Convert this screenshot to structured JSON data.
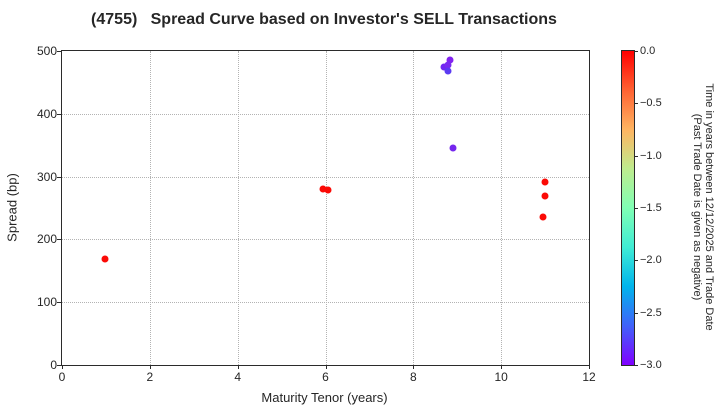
{
  "chart_data": {
    "type": "scatter",
    "title": "(4755)   Spread Curve based on Investor's SELL Transactions",
    "xlabel": "Maturity Tenor (years)",
    "ylabel": "Spread (bp)",
    "xlim": [
      0,
      12
    ],
    "ylim": [
      0,
      500
    ],
    "xticks": [
      0,
      2,
      4,
      6,
      8,
      10,
      12
    ],
    "yticks": [
      0,
      100,
      200,
      300,
      400,
      500
    ],
    "grid": true,
    "legend_position": "none",
    "points": [
      {
        "maturity": 0.97,
        "spread": 169,
        "time_years": 0.0,
        "color": "#fb0a06"
      },
      {
        "maturity": 5.95,
        "spread": 280,
        "time_years": 0.0,
        "color": "#fb0a06"
      },
      {
        "maturity": 6.06,
        "spread": 279,
        "time_years": -0.02,
        "color": "#fb0a06"
      },
      {
        "maturity": 8.7,
        "spread": 474,
        "time_years": -2.85,
        "color": "#7128f2"
      },
      {
        "maturity": 8.84,
        "spread": 486,
        "time_years": -2.95,
        "color": "#8222f0"
      },
      {
        "maturity": 8.78,
        "spread": 478,
        "time_years": -2.9,
        "color": "#7a2af0"
      },
      {
        "maturity": 8.8,
        "spread": 468,
        "time_years": -2.75,
        "color": "#5b3bf2"
      },
      {
        "maturity": 8.9,
        "spread": 345,
        "time_years": -2.9,
        "color": "#7527ee"
      },
      {
        "maturity": 11.0,
        "spread": 291,
        "time_years": 0.0,
        "color": "#fb0a06"
      },
      {
        "maturity": 11.0,
        "spread": 269,
        "time_years": -0.05,
        "color": "#fb0a06"
      },
      {
        "maturity": 10.95,
        "spread": 235,
        "time_years": 0.0,
        "color": "#fb0a06"
      }
    ],
    "colorbar": {
      "label_line1": "Time in years between 12/12/2025 and Trade Date",
      "label_line2": "(Past Trade Date is given as negative)",
      "vmin": -3.0,
      "vmax": 0.0,
      "ticks": [
        {
          "value": 0.0,
          "label": "0.0"
        },
        {
          "value": -0.5,
          "label": "−0.5"
        },
        {
          "value": -1.0,
          "label": "−1.0"
        },
        {
          "value": -1.5,
          "label": "−1.5"
        },
        {
          "value": -2.0,
          "label": "−2.0"
        },
        {
          "value": -2.5,
          "label": "−2.5"
        },
        {
          "value": -3.0,
          "label": "−3.0"
        }
      ],
      "gradient": [
        {
          "pos": 0.0,
          "color": "#ff0000"
        },
        {
          "pos": 0.125,
          "color": "#ff6232"
        },
        {
          "pos": 0.25,
          "color": "#ffb461"
        },
        {
          "pos": 0.375,
          "color": "#bfec8e"
        },
        {
          "pos": 0.5,
          "color": "#80ffb4"
        },
        {
          "pos": 0.625,
          "color": "#40ecd4"
        },
        {
          "pos": 0.75,
          "color": "#00b4ec"
        },
        {
          "pos": 0.875,
          "color": "#4062fa"
        },
        {
          "pos": 1.0,
          "color": "#8000ff"
        }
      ]
    }
  }
}
